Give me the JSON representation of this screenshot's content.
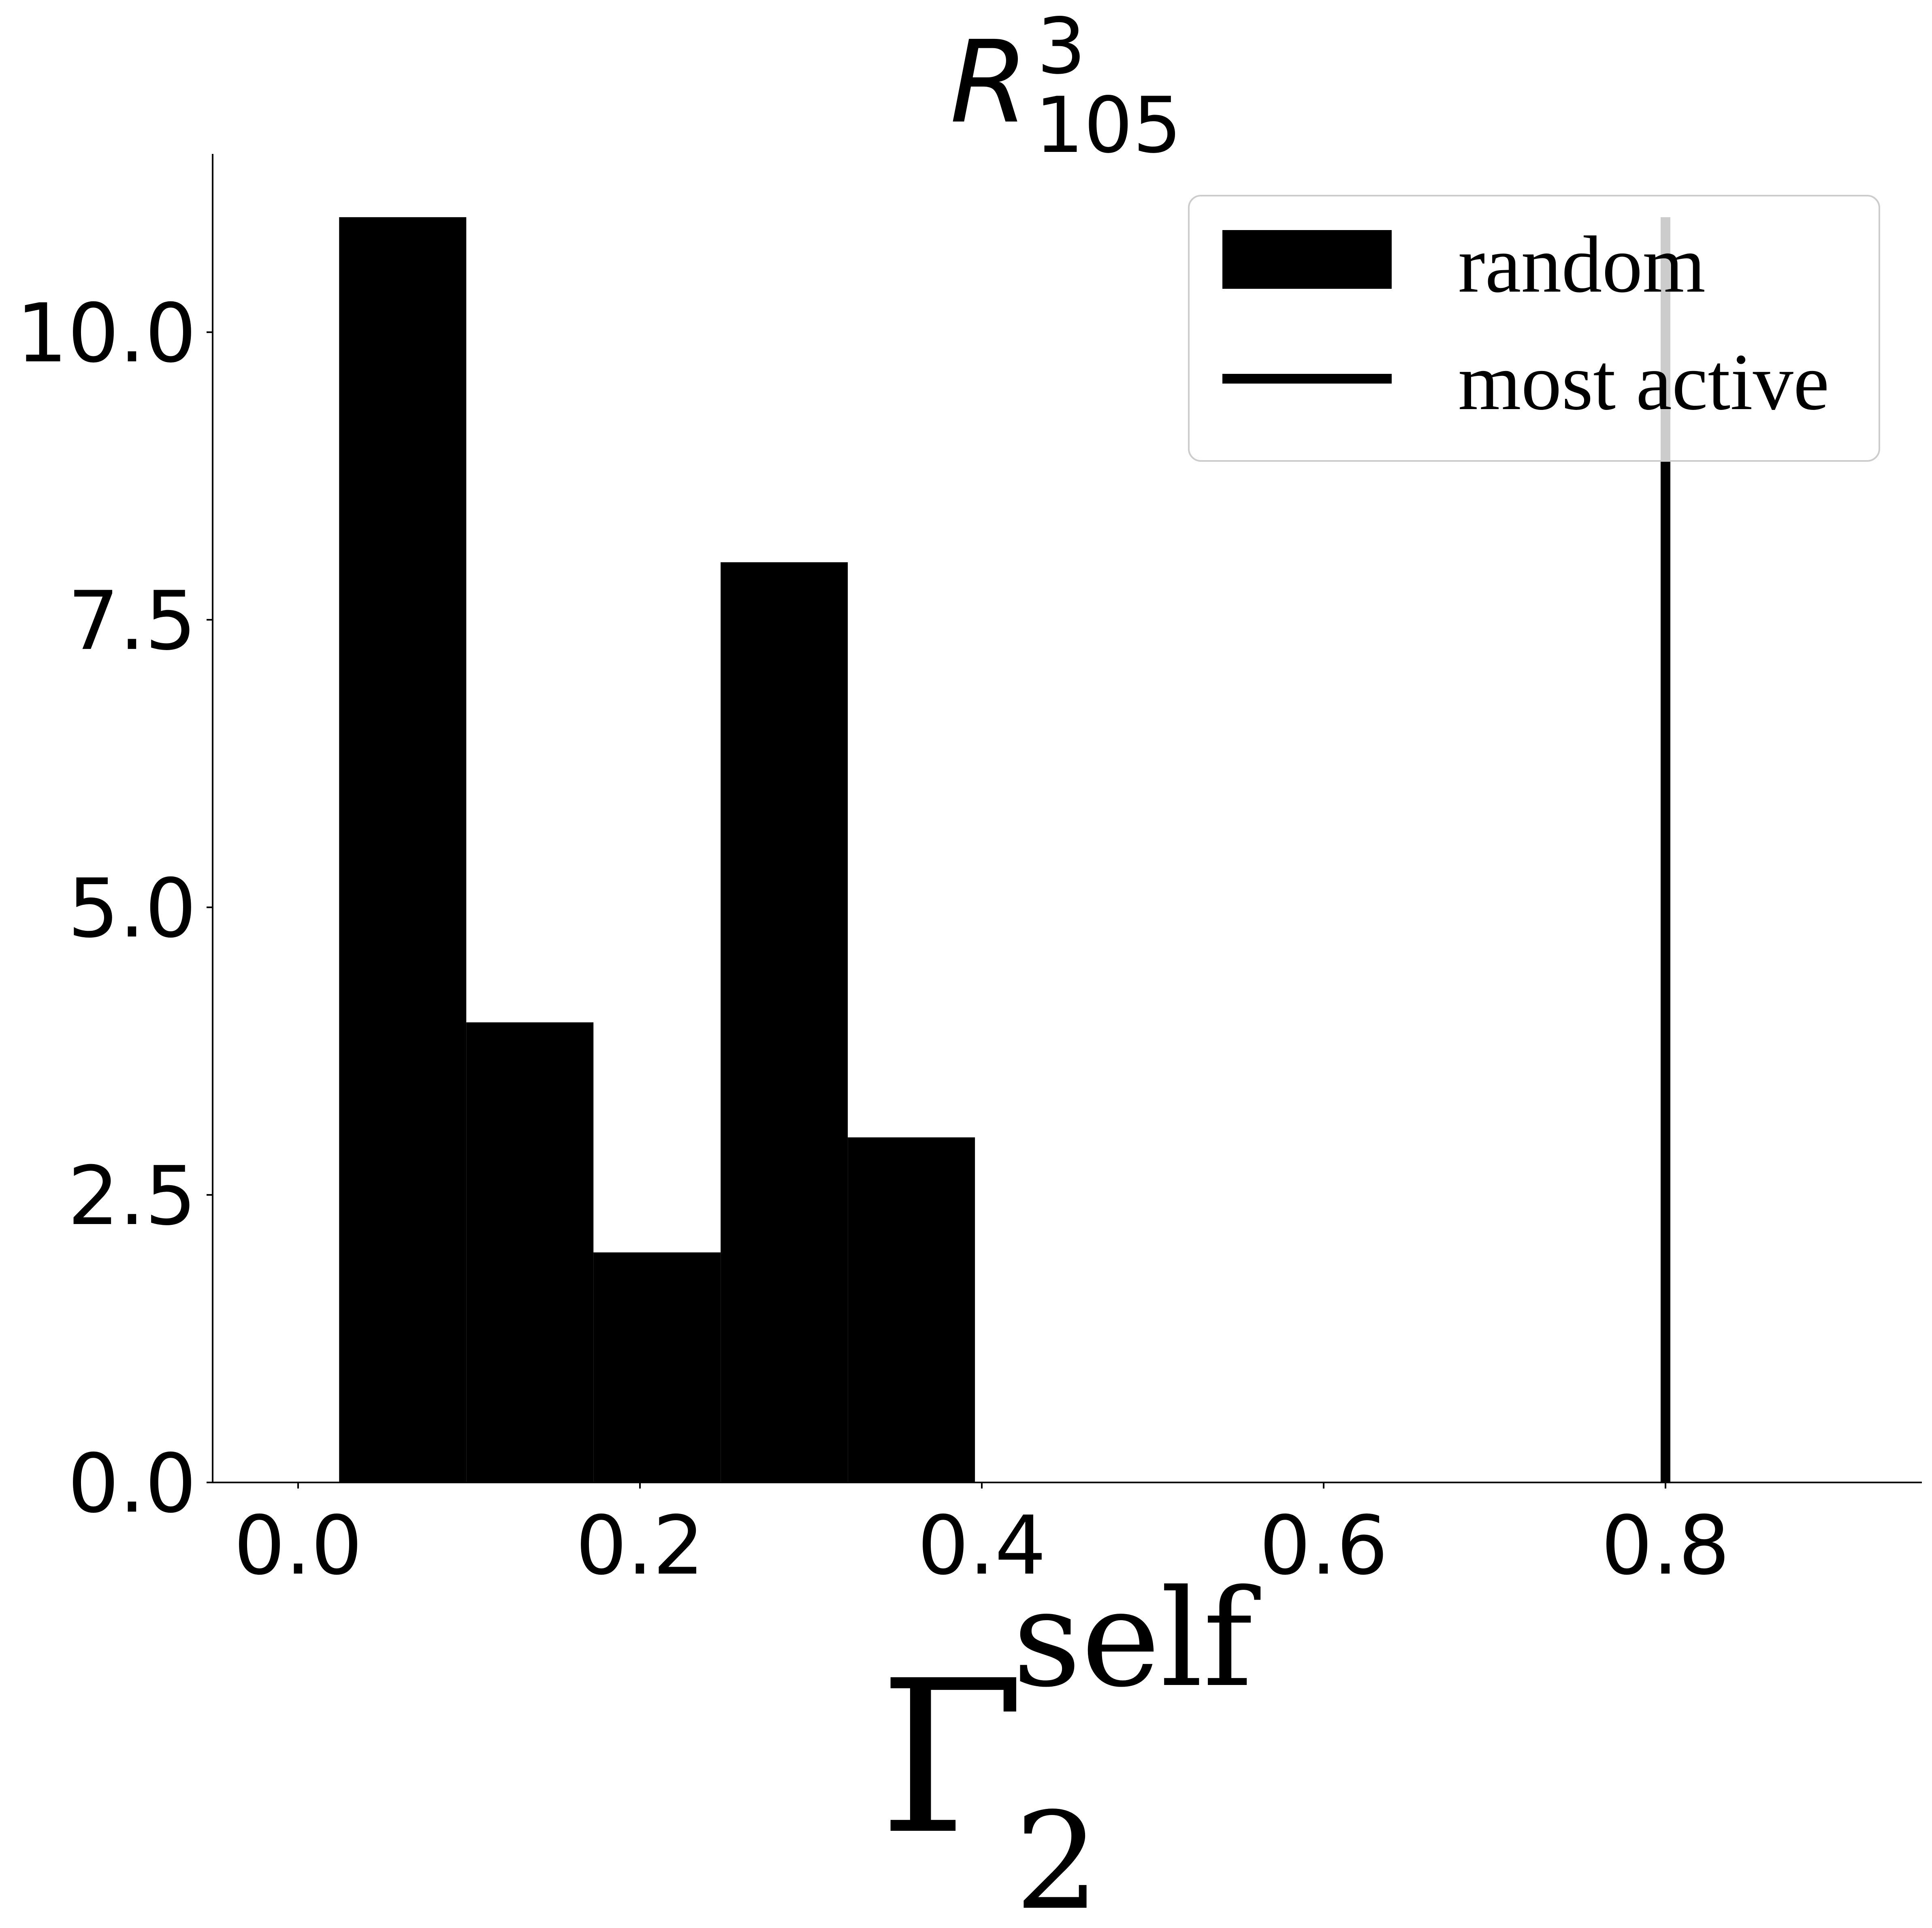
{
  "chart_data": {
    "type": "bar",
    "title": {
      "base": "R",
      "superscript": "3",
      "subscript": "105"
    },
    "xlabel": {
      "base": "Γ",
      "superscript": "self",
      "subscript": "2"
    },
    "ylabel": "",
    "xlim": [
      -0.05,
      0.95
    ],
    "ylim": [
      0,
      11.55
    ],
    "xticks": [
      0.0,
      0.2,
      0.4,
      0.6,
      0.8
    ],
    "xtick_labels": [
      "0.0",
      "0.2",
      "0.4",
      "0.6",
      "0.8"
    ],
    "yticks": [
      0.0,
      2.5,
      5.0,
      7.5,
      10.0
    ],
    "ytick_labels": [
      "0.0",
      "2.5",
      "5.0",
      "7.5",
      "10.0"
    ],
    "series": [
      {
        "name": "random",
        "kind": "histogram",
        "color": "#000000",
        "bin_edges": [
          0.024,
          0.0984,
          0.1728,
          0.2472,
          0.3216,
          0.396
        ],
        "counts": [
          11,
          4,
          2,
          8,
          3
        ]
      },
      {
        "name": "most active",
        "kind": "vertical-line",
        "color": "#000000",
        "x": 0.8,
        "y_range": [
          0,
          11
        ]
      }
    ],
    "legend": {
      "position": "top-right",
      "entries": [
        "random",
        "most active"
      ]
    },
    "grid": false,
    "spines": [
      "left",
      "bottom"
    ]
  }
}
